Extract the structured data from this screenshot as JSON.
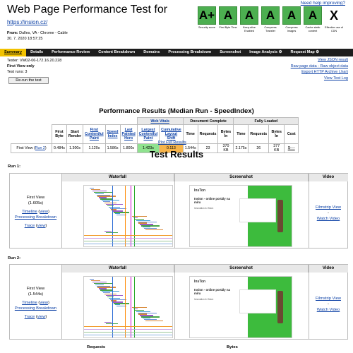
{
  "header": {
    "title": "Web Page Performance Test for",
    "url": "https://insion.cz/",
    "from_label": "From:",
    "from_value": "Dulles, VA - Chrome - Cable",
    "date": "30. 7. 2020 18:57:25",
    "need_help": "Need help improving?"
  },
  "grades": [
    {
      "grade": "A+",
      "label": "Security score"
    },
    {
      "grade": "A",
      "label": "First Byte Time"
    },
    {
      "grade": "A",
      "label": "Keep-alive Enabled"
    },
    {
      "grade": "A",
      "label": "Compress Transfer"
    },
    {
      "grade": "A",
      "label": "Compress Images"
    },
    {
      "grade": "A",
      "label": "Cache static content"
    },
    {
      "grade": "X",
      "label": "Effective use of CDN"
    }
  ],
  "colors": {
    "grade_green": "#4caf50",
    "nav_bg": "#1d1d1d",
    "nav_active": "#f2c200",
    "lcp_green": "#8fe28f",
    "cls_orange": "#f7b44a"
  },
  "nav": {
    "tabs": [
      "Summary",
      "Details",
      "Performance Review",
      "Content Breakdown",
      "Domains",
      "Processing Breakdown",
      "Screenshot",
      "Image Analysis ⚙",
      "Request Map ⚙"
    ]
  },
  "info": {
    "tester": "Tester: VM02-06-172.16.20.228",
    "first_view_only": "First View only",
    "test_runs": "Test runs: 3",
    "rerun": "Re-run the test"
  },
  "right_links": [
    "View JSON result",
    "Raw page data - Raw object data",
    "Export HTTP Archive (.har)",
    "View Test Log"
  ],
  "performance": {
    "title": "Performance Results (Median Run - SpeedIndex)",
    "groups": {
      "web_vitals": "Web Vitals",
      "document_complete": "Document Complete",
      "fully_loaded": "Fully Loaded"
    },
    "columns": [
      "First Byte",
      "Start Render",
      "First Contentful Paint",
      "Speed Index",
      "Last Painted Hero",
      "Largest Contentful Paint",
      "Cumulative Layout Shift",
      "Time",
      "Requests",
      "Bytes In",
      "Time",
      "Requests",
      "Bytes In",
      "Cost"
    ],
    "row_label": "First View (",
    "row_link": "Run 2",
    "row_label_end": ")",
    "values": [
      "0.484s",
      "1.300s",
      "1.120s",
      "1.586s",
      "1.800s",
      "1.423s",
      "0.113",
      "1.544s",
      "23",
      "370 KB",
      "2.175s",
      "26",
      "377 KB",
      "$----"
    ],
    "plot_link": "Plot Full Results"
  },
  "test_results": {
    "title": "Test Results",
    "headers": {
      "waterfall": "Waterfall",
      "screenshot": "Screenshot",
      "video": "Video"
    },
    "runs": [
      {
        "label": "Run 1:",
        "view": "First View",
        "time": "(1.605s)",
        "timeline": "Timeline",
        "view_link": "view",
        "processing": "Processing Breakdown",
        "trace": "Trace",
        "filmstrip": "Filmstrip View",
        "dash": "-",
        "watch": "Watch Video"
      },
      {
        "label": "Run 2:",
        "view": "First View",
        "time": "(1.544s)",
        "timeline": "Timeline",
        "view_link": "view",
        "processing": "Processing Breakdown",
        "trace": "Trace",
        "filmstrip": "Filmstrip View",
        "dash": "-",
        "watch": "Watch Video"
      }
    ],
    "screenshot": {
      "logo": "InsTon",
      "headline": "Insion - online portály na míru",
      "sub": "Innovation & Vision"
    },
    "bottom": {
      "requests": "Requests",
      "bytes": "Bytes"
    }
  }
}
